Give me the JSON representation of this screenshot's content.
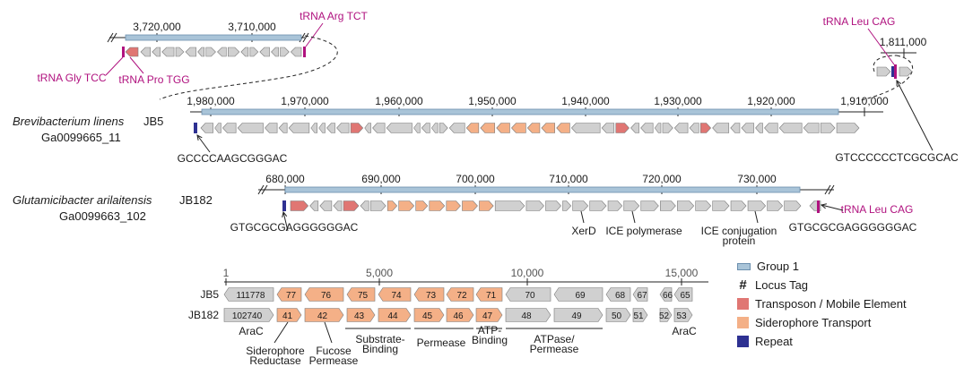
{
  "colors": {
    "gene": "#d0d0d0",
    "gene_stroke": "#7a7a7a",
    "transposon": "#e07673",
    "siderophore": "#f4b087",
    "repeat": "#2e3192",
    "trna": "#b0127f",
    "group1": "#a9c4d8",
    "group1_stroke": "#6b8fae"
  },
  "top_left_axis": {
    "ticks": [
      "3,720,000",
      "3,710,000"
    ]
  },
  "top_right_axis": {
    "ticks": [
      "1,811,000"
    ]
  },
  "jb5": {
    "species": "Brevibacterium linens",
    "strain": "JB5",
    "id": "Ga0099665_11",
    "ticks": [
      "1,980,000",
      "1,970,000",
      "1,960,000",
      "1,950,000",
      "1,940,000",
      "1,930,000",
      "1,920,000",
      "1,910,000"
    ],
    "repeat_seq_left": "GCCCCAAGCGGGAC",
    "repeat_seq_right": "GTCCCCCCTCGCGCAC"
  },
  "jb182": {
    "species": "Glutamicibacter arilaitensis",
    "strain": "JB182",
    "id": "Ga0099663_102",
    "ticks": [
      "680,000",
      "690,000",
      "700,000",
      "710,000",
      "720,000",
      "730,000"
    ],
    "repeat_seq_left": "GTGCGCGAGGGGGGAC",
    "repeat_seq_right": "GTGCGCGAGGGGGGAC",
    "annotations": [
      "XerD",
      "ICE polymerase",
      "ICE conjugation\nprotein"
    ]
  },
  "trna_labels": {
    "gly": "tRNA Gly TCC",
    "pro": "tRNA Pro TGG",
    "arg": "tRNA Arg TCT",
    "leu_top": "tRNA Leu CAG",
    "leu_jb182": "tRNA Leu CAG"
  },
  "detail": {
    "scale_ticks": [
      "1",
      "5,000",
      "10,000",
      "15,000"
    ],
    "row_labels": [
      "JB5",
      "JB182"
    ],
    "jb5_tags": [
      "111778",
      "77",
      "76",
      "75",
      "74",
      "73",
      "72",
      "71",
      "70",
      "69",
      "68",
      "67",
      "66",
      "65"
    ],
    "jb182_tags": [
      "102740",
      "41",
      "42",
      "43",
      "44",
      "45",
      "46",
      "47",
      "48",
      "49",
      "50",
      "51",
      "52",
      "53"
    ],
    "annotations": [
      "AraC",
      "Siderophore\nReductase",
      "Fucose\nPermease",
      "Substrate-\nBinding",
      "Permease",
      "ATP-\nBinding",
      "ATPase/\nPermease",
      "AraC"
    ]
  },
  "legend": [
    {
      "label": "Group 1",
      "kind": "group"
    },
    {
      "label": "Locus Tag",
      "kind": "hash"
    },
    {
      "label": "Transposon / Mobile Element",
      "kind": "transposon"
    },
    {
      "label": "Siderophore Transport",
      "kind": "siderophore"
    },
    {
      "label": "Repeat",
      "kind": "repeat"
    }
  ]
}
